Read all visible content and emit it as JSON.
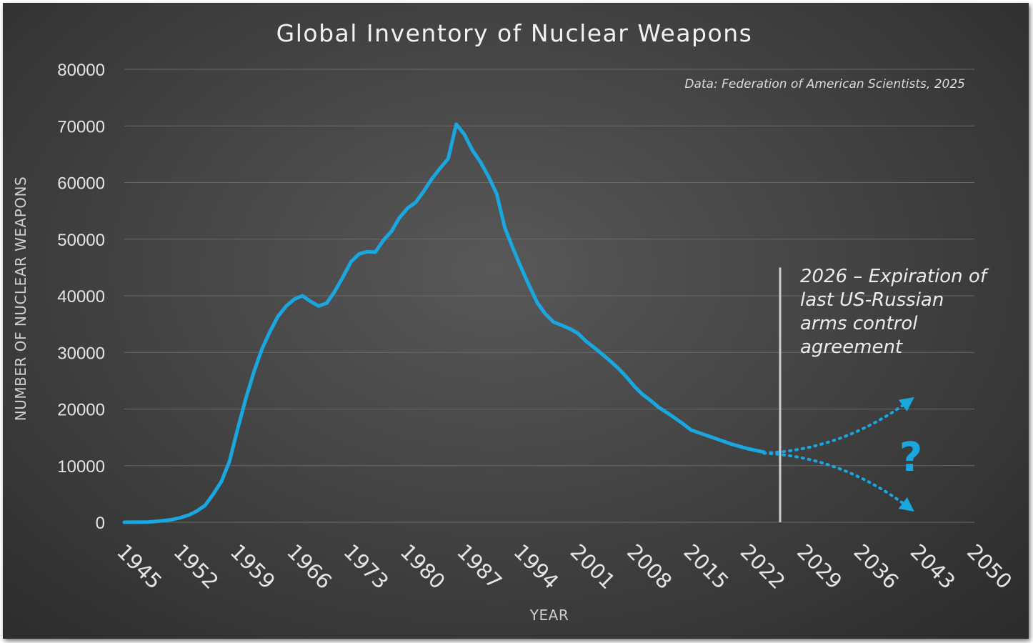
{
  "chart_data": {
    "type": "line",
    "title": "Global Inventory of Nuclear Weapons",
    "source": "Data: Federation of American Scientists, 2025",
    "xlabel": "YEAR",
    "ylabel": "NUMBER OF NUCLEAR WEAPONS",
    "xlim": [
      1945,
      2050
    ],
    "ylim": [
      0,
      80000
    ],
    "yticks": [
      0,
      10000,
      20000,
      30000,
      40000,
      50000,
      60000,
      70000,
      80000
    ],
    "xticks": [
      1945,
      1952,
      1959,
      1966,
      1973,
      1980,
      1987,
      1994,
      2001,
      2008,
      2015,
      2022,
      2029,
      2036,
      2043,
      2050
    ],
    "grid": true,
    "colors": {
      "line": "#1aa7e0",
      "marker_line": "#cfcfcf"
    },
    "series": [
      {
        "x": [
          1945,
          1946,
          1947,
          1948,
          1949,
          1950,
          1951,
          1952,
          1953,
          1954,
          1955,
          1956,
          1957,
          1958,
          1959,
          1960,
          1961,
          1962,
          1963,
          1964,
          1965,
          1966,
          1967,
          1968,
          1969,
          1970,
          1971,
          1972,
          1973,
          1974,
          1975,
          1976,
          1977,
          1978,
          1979,
          1980,
          1981,
          1982,
          1983,
          1984,
          1985,
          1986,
          1987,
          1988,
          1989,
          1990,
          1991,
          1992,
          1993,
          1994,
          1995,
          1996,
          1997,
          1998,
          1999,
          2000,
          2001,
          2002,
          2003,
          2004,
          2005,
          2006,
          2007,
          2008,
          2009,
          2010,
          2011,
          2012,
          2013,
          2014,
          2015,
          2016,
          2017,
          2018,
          2019,
          2020,
          2021,
          2022,
          2023,
          2024
        ],
        "values": [
          2,
          9,
          13,
          50,
          170,
          300,
          500,
          830,
          1300,
          2000,
          3000,
          5000,
          7200,
          10800,
          16500,
          21800,
          26500,
          30600,
          33700,
          36400,
          38200,
          39400,
          40000,
          39000,
          38200,
          38700,
          40800,
          43300,
          46000,
          47400,
          47800,
          47700,
          49800,
          51400,
          53800,
          55500,
          56500,
          58500,
          60700,
          62500,
          64200,
          70300,
          68500,
          65700,
          63600,
          61000,
          58000,
          52000,
          48400,
          45000,
          41800,
          38800,
          36800,
          35400,
          34800,
          34200,
          33400,
          32000,
          30900,
          29700,
          28500,
          27200,
          25700,
          24000,
          22600,
          21500,
          20300,
          19400,
          18400,
          17400,
          16300,
          15800,
          15300,
          14800,
          14300,
          13800,
          13400,
          13000,
          12700,
          12400
        ]
      },
      {
        "name": "upper projection",
        "style": "dotted",
        "x": [
          2024,
          2030,
          2036,
          2042
        ],
        "values": [
          12200,
          12600,
          15200,
          21500
        ]
      },
      {
        "name": "lower projection",
        "style": "dotted",
        "x": [
          2024,
          2030,
          2036,
          2042
        ],
        "values": [
          12200,
          11800,
          9000,
          2500
        ]
      }
    ],
    "marker": {
      "x": 2026,
      "y_top": 45000,
      "annotation": [
        "2026 – Expiration of",
        "last US-Russian",
        "arms control",
        "agreement"
      ]
    },
    "question_mark": "?"
  }
}
